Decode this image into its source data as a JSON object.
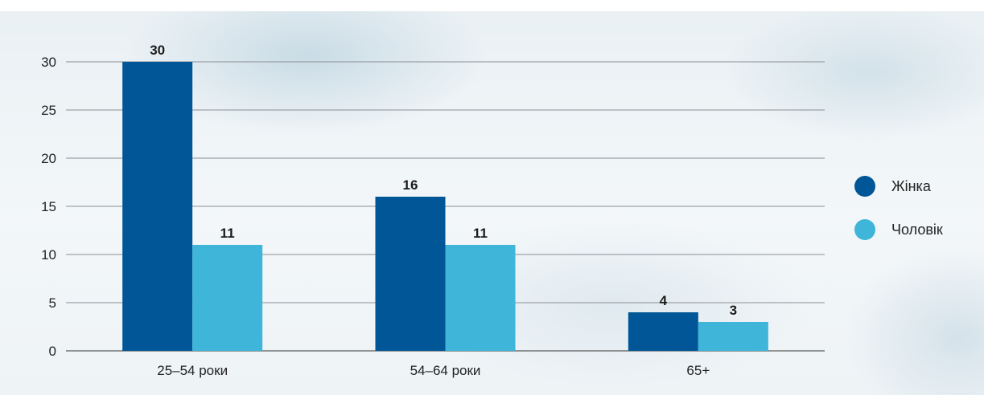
{
  "chart_data": {
    "type": "bar",
    "title": "",
    "xlabel": "",
    "ylabel": "",
    "categories": [
      "25–54 роки",
      "54–64 роки",
      "65+"
    ],
    "series": [
      {
        "name": "Жінка",
        "values": [
          30,
          16,
          4
        ],
        "color": "#005696"
      },
      {
        "name": "Чоловік",
        "values": [
          11,
          11,
          3
        ],
        "color": "#3eb5d9"
      }
    ],
    "ylim": [
      0,
      30
    ],
    "yticks": [
      0,
      5,
      10,
      15,
      20,
      25,
      30
    ],
    "grid": true,
    "legend_position": "right"
  }
}
